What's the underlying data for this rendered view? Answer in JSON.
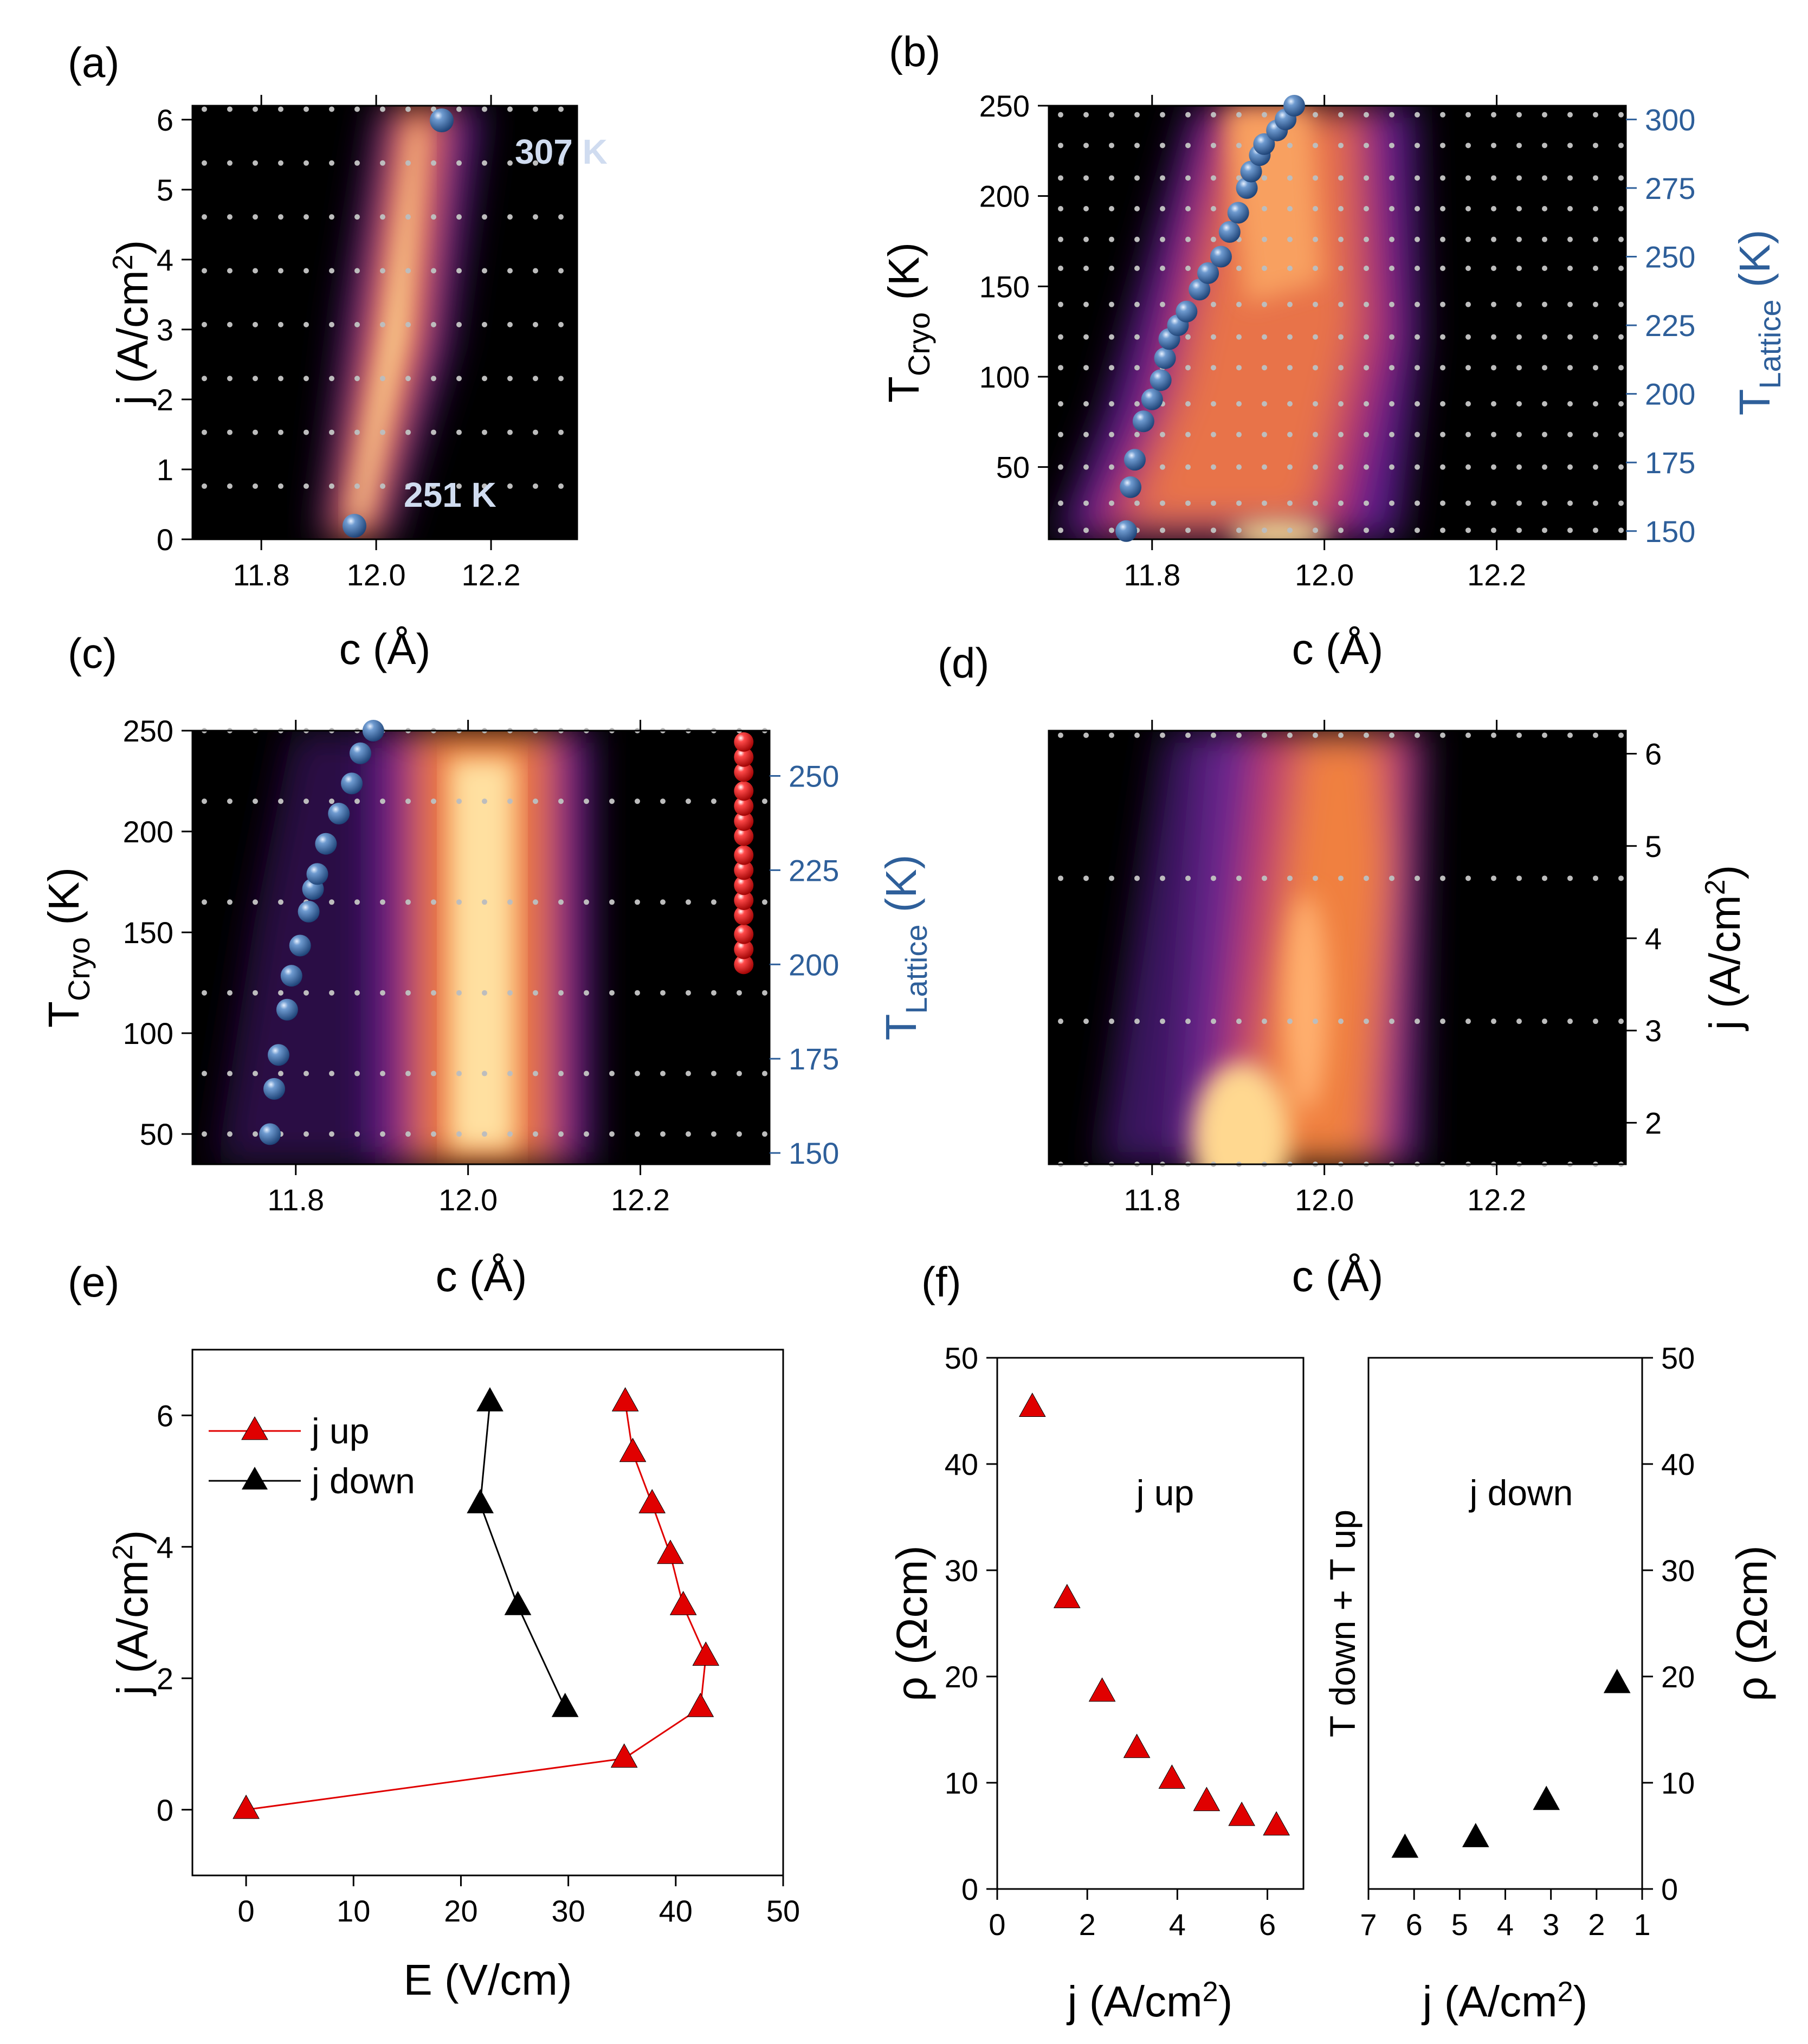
{
  "colors": {
    "map_dark": "#000000",
    "map_purple": "#5a1f8a",
    "map_orange": "#f08040",
    "map_bright": "#ffe8a0",
    "lattice_blue": "#2e5f9a",
    "series_red": "#e00000",
    "series_black": "#000000",
    "grid_dot": "#bdbdbd"
  },
  "chart_data": [
    {
      "panel": "(a)",
      "type": "heatmap",
      "xlabel": "c (Å)",
      "ylabel_main": "j (A/cm",
      "ylabel_sup": "2",
      "ylabel_end": ")",
      "xlim": [
        11.68,
        12.35
      ],
      "ylim": [
        0,
        6.2
      ],
      "xticks": [
        "11.8",
        "12.0",
        "12.2"
      ],
      "yticks": [
        "0",
        "1",
        "2",
        "3",
        "4",
        "5",
        "6"
      ],
      "measured_y": [
        0.76,
        1.53,
        2.3,
        3.07,
        3.84,
        4.61,
        5.38,
        6.15
      ],
      "peak_ridge": {
        "y": [
          0.0,
          1.5,
          3.0,
          4.5,
          6.2
        ],
        "c": [
          11.87,
          11.9,
          11.92,
          11.93,
          11.95
        ]
      },
      "annotations": [
        {
          "text": "307 K",
          "c": 11.97,
          "y": 6.0
        },
        {
          "text": "251 K",
          "c": 11.87,
          "y": 0.2
        }
      ]
    },
    {
      "panel": "(b)",
      "type": "heatmap",
      "xlabel": "c (Å)",
      "ylabel_main": "T",
      "ylabel_sub": "Cryo",
      "ylabel_end": " (K)",
      "y2label_main": "T",
      "y2label_sub": "Lattice",
      "y2label_end": " (K)",
      "xlim": [
        11.68,
        12.35
      ],
      "ylim": [
        10,
        250
      ],
      "y2lim": [
        147,
        305
      ],
      "xticks": [
        "11.8",
        "12.0",
        "12.2"
      ],
      "yticks": [
        "50",
        "100",
        "150",
        "200",
        "250"
      ],
      "y2ticks": [
        "150",
        "175",
        "200",
        "225",
        "250",
        "275",
        "300"
      ],
      "measured_y": [
        15,
        30,
        50,
        68,
        85,
        105,
        122,
        140,
        160,
        176,
        193,
        210,
        228,
        245
      ],
      "lattice_series": {
        "name": "T_Lattice",
        "c": [
          11.77,
          11.775,
          11.78,
          11.79,
          11.8,
          11.81,
          11.815,
          11.82,
          11.83,
          11.84,
          11.855,
          11.865,
          11.88,
          11.89,
          11.9,
          11.91,
          11.915,
          11.925,
          11.93,
          11.945,
          11.955,
          11.965
        ],
        "t_lattice": [
          150,
          166,
          176,
          190,
          198,
          205,
          213,
          220,
          225,
          230,
          238,
          244,
          250,
          259,
          266,
          275,
          281,
          287,
          291,
          296,
          300,
          305
        ]
      }
    },
    {
      "panel": "(c)",
      "type": "heatmap",
      "xlabel": "c (Å)",
      "ylabel_main": "T",
      "ylabel_sub": "Cryo",
      "ylabel_end": " (K)",
      "y2label_main": "T",
      "y2label_sub": "Lattice",
      "y2label_end": " (K)",
      "xlim": [
        11.68,
        12.35
      ],
      "ylim": [
        35,
        250
      ],
      "y2lim": [
        147,
        262
      ],
      "xticks": [
        "11.8",
        "12.0",
        "12.2"
      ],
      "yticks": [
        "50",
        "100",
        "150",
        "200",
        "250"
      ],
      "y2ticks": [
        "150",
        "175",
        "200",
        "225",
        "250"
      ],
      "measured_y": [
        50,
        80,
        120,
        165,
        215,
        250
      ],
      "lattice_series": {
        "name": "T_Lattice",
        "c": [
          11.77,
          11.775,
          11.78,
          11.79,
          11.795,
          11.805,
          11.815,
          11.82,
          11.825,
          11.835,
          11.85,
          11.865,
          11.875,
          11.89
        ],
        "t_lattice": [
          155,
          167,
          176,
          188,
          197,
          205,
          214,
          220,
          224,
          232,
          240,
          248,
          256,
          262
        ]
      },
      "red_markers": {
        "c": 12.32,
        "t_lattice": [
          200,
          204,
          208,
          213,
          217,
          221,
          225,
          229,
          234,
          238,
          242,
          246,
          251,
          255,
          259
        ]
      }
    },
    {
      "panel": "(d)",
      "type": "heatmap",
      "xlabel": "c (Å)",
      "y2label_main": "j (A/cm",
      "y2label_sup": "2",
      "y2label_end": ")",
      "xlim": [
        11.68,
        12.35
      ],
      "ylim": [
        1.55,
        6.25
      ],
      "xticks": [
        "11.8",
        "12.0",
        "12.2"
      ],
      "y2ticks": [
        "2",
        "3",
        "4",
        "5",
        "6"
      ],
      "measured_y": [
        1.55,
        3.1,
        4.65,
        6.2
      ],
      "peak_ridge": {
        "y": [
          1.55,
          3.0,
          4.6,
          6.25
        ],
        "c": [
          11.95,
          12.0,
          12.02,
          12.03
        ]
      }
    },
    {
      "panel": "(e)",
      "type": "line",
      "xlabel": "E (V/cm)",
      "ylabel_main": "j (A/cm",
      "ylabel_sup": "2",
      "ylabel_end": ")",
      "xlim": [
        -5,
        50
      ],
      "ylim": [
        -1,
        7
      ],
      "xticks": [
        "0",
        "10",
        "20",
        "30",
        "40",
        "50"
      ],
      "yticks": [
        "0",
        "2",
        "4",
        "6"
      ],
      "legend_position": "top-left",
      "series": [
        {
          "name": "j up",
          "color": "#e00000",
          "x": [
            0,
            35.2,
            42.3,
            42.8,
            40.7,
            39.5,
            37.8,
            36.0,
            35.3
          ],
          "y": [
            0,
            0.78,
            1.55,
            2.33,
            3.1,
            3.88,
            4.65,
            5.43,
            6.2
          ]
        },
        {
          "name": "j down",
          "color": "#000000",
          "x": [
            22.7,
            21.8,
            25.3,
            29.7
          ],
          "y": [
            6.2,
            4.65,
            3.1,
            1.55
          ]
        }
      ]
    },
    {
      "panel": "(f)",
      "type": "scatter",
      "subpanels": [
        {
          "label": "j up",
          "xlabel_main": "j (A/cm",
          "xlabel_sup": "2",
          "xlabel_end": ")",
          "ylabel": "ρ (Ωcm)",
          "xlim": [
            0,
            6.8
          ],
          "ylim": [
            0,
            50
          ],
          "xticks": [
            "0",
            "2",
            "4",
            "6"
          ],
          "yticks": [
            "0",
            "10",
            "20",
            "30",
            "40",
            "50"
          ],
          "color": "#e00000",
          "x": [
            0.78,
            1.55,
            2.33,
            3.1,
            3.88,
            4.65,
            5.43,
            6.2
          ],
          "y": [
            45.3,
            27.3,
            18.5,
            13.2,
            10.3,
            8.2,
            6.8,
            5.9
          ]
        },
        {
          "label": "j down",
          "xlabel_main": "j (A/cm",
          "xlabel_sup": "2",
          "xlabel_end": ")",
          "ylabel": "ρ (Ωcm)",
          "left_label": "T down + T up",
          "xlim": [
            7,
            1
          ],
          "ylim": [
            0,
            50
          ],
          "xticks": [
            "7",
            "6",
            "5",
            "4",
            "3",
            "2",
            "1"
          ],
          "yticks": [
            "0",
            "10",
            "20",
            "30",
            "40",
            "50"
          ],
          "color": "#000000",
          "x": [
            6.2,
            4.65,
            3.1,
            1.55
          ],
          "y": [
            3.8,
            4.8,
            8.3,
            19.3
          ]
        }
      ]
    }
  ]
}
